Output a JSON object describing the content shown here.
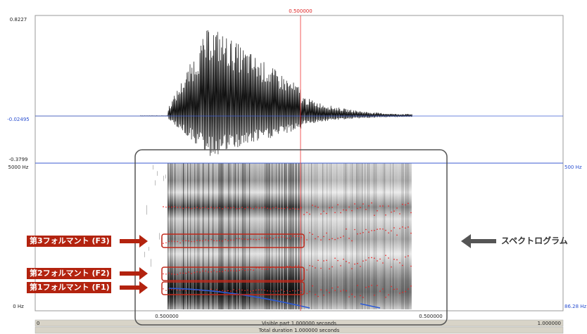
{
  "waveform": {
    "top_value": "0.8227",
    "zero_value": "-0.02495",
    "bottom_value": "-0.3799",
    "cursor_time": "0.500000"
  },
  "spectrogram": {
    "top_freq": "5000 Hz",
    "bottom_freq": "0 Hz",
    "pitch_top": "500 Hz",
    "pitch_bottom": "86.28 Hz"
  },
  "selection": {
    "left_time": "0.500000",
    "right_time": "0.500000"
  },
  "time_bar": {
    "start": "0",
    "visible": "Visible part 1.000000 seconds",
    "end": "1.000000",
    "total": "Total duration 1.000000 seconds"
  },
  "annotations": {
    "f3": "第3フォルマント (F3)",
    "f2": "第2フォルマント (F2)",
    "f1": "第1フォルマント (F1)",
    "spectrogram": "スペクトログラム"
  }
}
